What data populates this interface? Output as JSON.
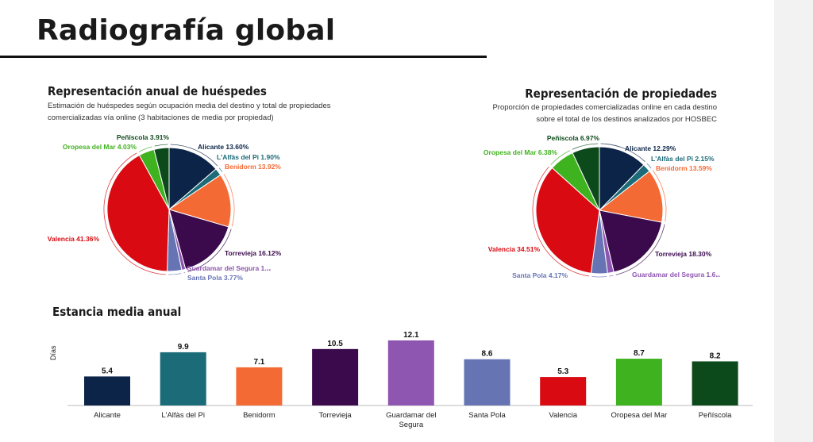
{
  "page": {
    "title": "Radiografía global"
  },
  "guests": {
    "title": "Representación anual de huéspedes",
    "subtitle_line1": "Estimación de huéspedes según ocupación media del destino y total de propiedades",
    "subtitle_line2": "comercializadas vía online (3 habitaciones de media por propiedad)"
  },
  "properties": {
    "title": "Representación de propiedades",
    "subtitle_line1": "Proporción de propiedades comercializadas online en cada destino",
    "subtitle_line2": "sobre el total de los destinos analizados por HOSBEC"
  },
  "stay": {
    "title": "Estancia media anual",
    "ylabel": "Días"
  },
  "colors": {
    "Alicante": "#0b2447",
    "L'Alfàs del Pi": "#1b6b78",
    "Benidorm": "#f46a35",
    "Torrevieja": "#3a0a4d",
    "Guardamar del Segura": "#8e56b0",
    "Santa Pola": "#6674b4",
    "Valencia": "#d90a12",
    "Oropesa del Mar": "#3fb21f",
    "Peñíscola": "#0d4a1b"
  },
  "chart_data": [
    {
      "type": "pie",
      "title": "Representación anual de huéspedes",
      "slices": [
        {
          "name": "Alicante",
          "value": 13.6,
          "label": "Alicante 13.60%"
        },
        {
          "name": "L'Alfàs del Pi",
          "value": 1.9,
          "label": "L'Alfàs del Pi 1.90%"
        },
        {
          "name": "Benidorm",
          "value": 13.92,
          "label": "Benidorm 13.92%"
        },
        {
          "name": "Torrevieja",
          "value": 16.12,
          "label": "Torrevieja 16.12%"
        },
        {
          "name": "Guardamar del Segura",
          "value": 1.0,
          "label": "Guardamar del Segura 1.‥"
        },
        {
          "name": "Santa Pola",
          "value": 3.77,
          "label": "Santa Pola 3.77%"
        },
        {
          "name": "Valencia",
          "value": 41.36,
          "label": "Valencia 41.36%"
        },
        {
          "name": "Oropesa del Mar",
          "value": 4.03,
          "label": "Oropesa del Mar 4.03%"
        },
        {
          "name": "Peñíscola",
          "value": 3.91,
          "label": "Peñíscola 3.91%"
        }
      ]
    },
    {
      "type": "pie",
      "title": "Representación de propiedades",
      "slices": [
        {
          "name": "Alicante",
          "value": 12.29,
          "label": "Alicante 12.29%"
        },
        {
          "name": "L'Alfàs del Pi",
          "value": 2.15,
          "label": "L'Alfàs del Pi 2.15%"
        },
        {
          "name": "Benidorm",
          "value": 13.59,
          "label": "Benidorm 13.59%"
        },
        {
          "name": "Torrevieja",
          "value": 18.3,
          "label": "Torrevieja 18.30%"
        },
        {
          "name": "Guardamar del Segura",
          "value": 1.6,
          "label": "Guardamar del Segura 1.6‥"
        },
        {
          "name": "Santa Pola",
          "value": 4.17,
          "label": "Santa Pola 4.17%"
        },
        {
          "name": "Valencia",
          "value": 34.51,
          "label": "Valencia 34.51%"
        },
        {
          "name": "Oropesa del Mar",
          "value": 6.38,
          "label": "Oropesa del Mar 6.38%"
        },
        {
          "name": "Peñíscola",
          "value": 6.97,
          "label": "Peñíscola 6.97%"
        }
      ]
    },
    {
      "type": "bar",
      "title": "Estancia media anual",
      "ylabel": "Días",
      "categories": [
        "Alicante",
        "L'Alfàs del Pi",
        "Benidorm",
        "Torrevieja",
        "Guardamar del Segura",
        "Santa Pola",
        "Valencia",
        "Oropesa del Mar",
        "Peñíscola"
      ],
      "category_labels": [
        [
          "Alicante"
        ],
        [
          "L'Alfàs del Pi"
        ],
        [
          "Benidorm"
        ],
        [
          "Torrevieja"
        ],
        [
          "Guardamar del",
          "Segura"
        ],
        [
          "Santa Pola"
        ],
        [
          "Valencia"
        ],
        [
          "Oropesa del Mar"
        ],
        [
          "Peñíscola"
        ]
      ],
      "values": [
        5.4,
        9.9,
        7.1,
        10.5,
        12.1,
        8.6,
        5.3,
        8.7,
        8.2
      ],
      "ylim": [
        0,
        12.1
      ]
    }
  ]
}
